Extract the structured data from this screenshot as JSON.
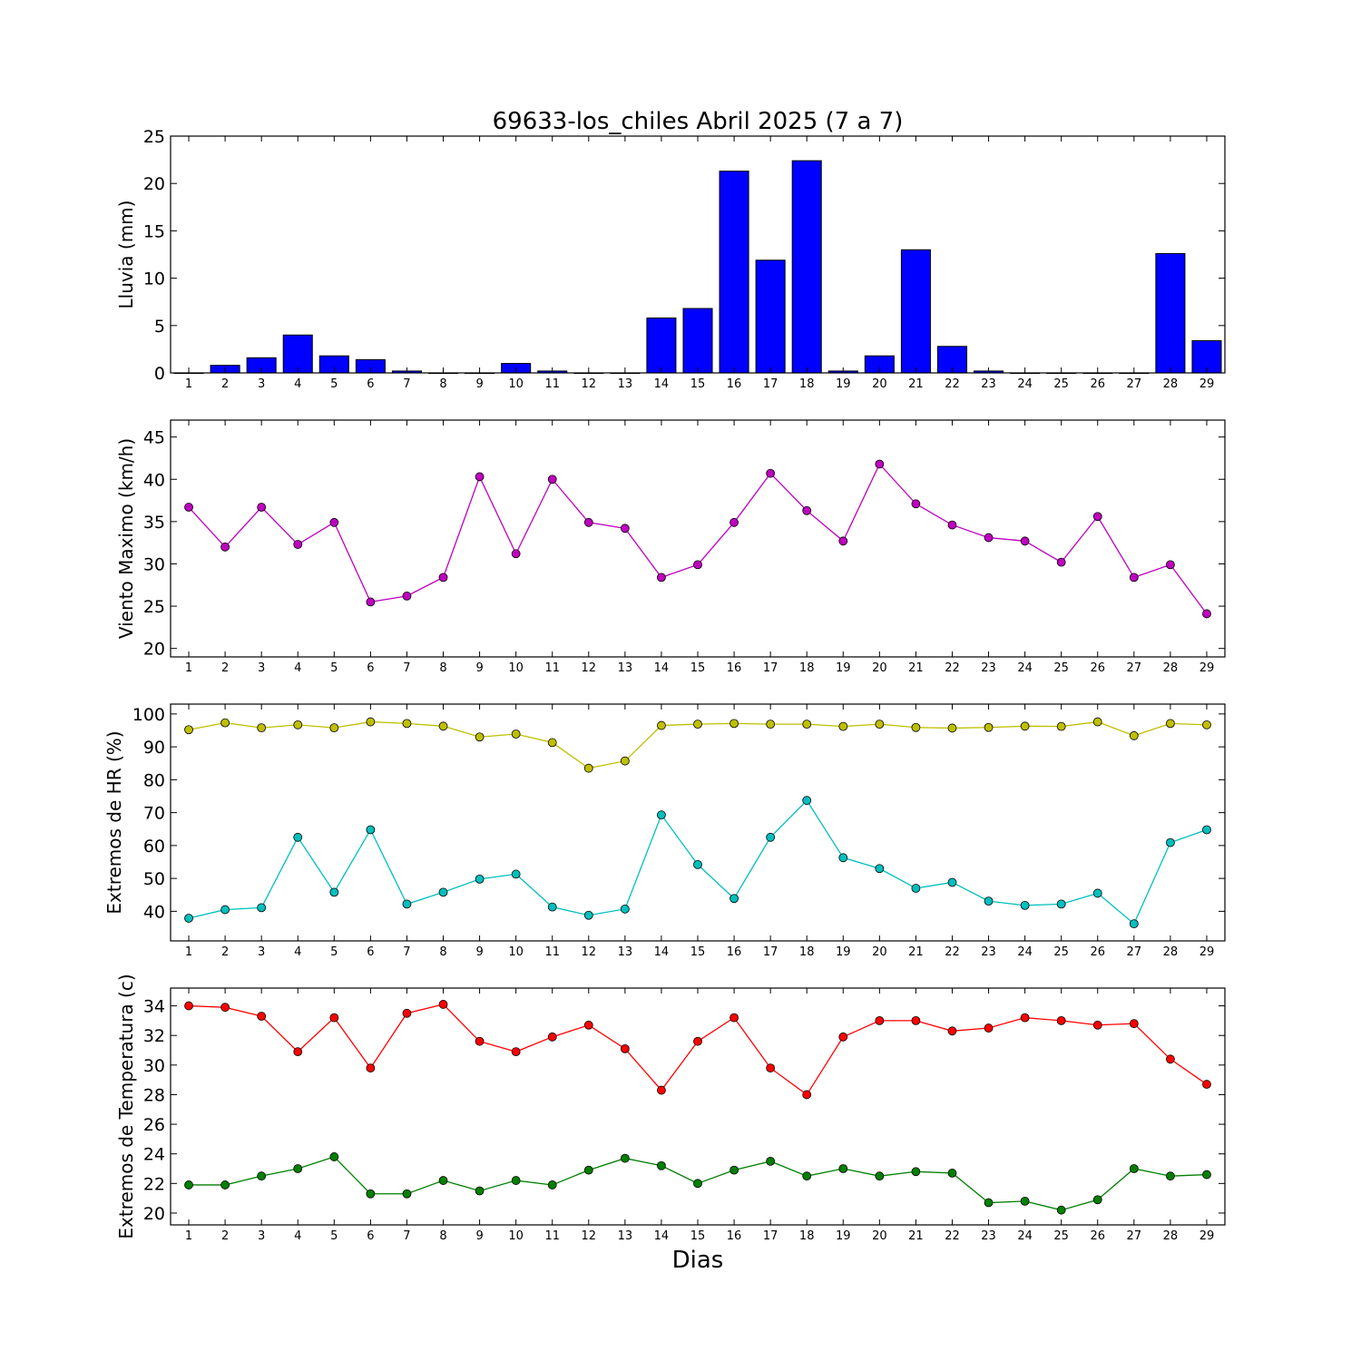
{
  "figure": {
    "title": "69633-los_chiles Abril 2025  (7 a 7)",
    "xlabel": "Dias"
  },
  "chart_data": [
    {
      "type": "bar",
      "ylabel": "Lluvia (mm)",
      "ylim": [
        0,
        25
      ],
      "yticks": [
        0,
        5,
        10,
        15,
        20,
        25
      ],
      "x": [
        1,
        2,
        3,
        4,
        5,
        6,
        7,
        8,
        9,
        10,
        11,
        12,
        13,
        14,
        15,
        16,
        17,
        18,
        19,
        20,
        21,
        22,
        23,
        24,
        25,
        26,
        27,
        28,
        29
      ],
      "values": [
        0,
        0.8,
        1.6,
        4.0,
        1.8,
        1.4,
        0.2,
        0,
        0,
        1.0,
        0.2,
        0,
        0,
        5.8,
        6.8,
        21.3,
        11.9,
        22.4,
        0.2,
        1.8,
        13.0,
        2.8,
        0.2,
        0,
        0,
        0,
        0,
        12.6,
        3.4
      ],
      "color": "#0000ff",
      "grid": false
    },
    {
      "type": "line",
      "ylabel": "Viento Maximo (km/h)",
      "ylim": [
        19,
        47
      ],
      "yticks": [
        20,
        25,
        30,
        35,
        40,
        45
      ],
      "x": [
        1,
        2,
        3,
        4,
        5,
        6,
        7,
        8,
        9,
        10,
        11,
        12,
        13,
        14,
        15,
        16,
        17,
        18,
        19,
        20,
        21,
        22,
        23,
        24,
        25,
        26,
        27,
        28,
        29
      ],
      "series": [
        {
          "color": "#bf00bf",
          "values": [
            36.7,
            32.0,
            36.7,
            32.3,
            34.9,
            25.5,
            26.2,
            28.4,
            40.3,
            31.2,
            40.0,
            34.9,
            34.2,
            28.4,
            29.9,
            34.9,
            40.7,
            36.3,
            32.7,
            41.8,
            37.1,
            34.6,
            33.1,
            32.7,
            30.2,
            35.6,
            28.4,
            29.9,
            24.1
          ]
        }
      ],
      "grid": false
    },
    {
      "type": "line",
      "ylabel": "Extremos de HR (%)",
      "ylim": [
        31,
        103
      ],
      "yticks": [
        40,
        50,
        60,
        70,
        80,
        90,
        100
      ],
      "x": [
        1,
        2,
        3,
        4,
        5,
        6,
        7,
        8,
        9,
        10,
        11,
        12,
        13,
        14,
        15,
        16,
        17,
        18,
        19,
        20,
        21,
        22,
        23,
        24,
        25,
        26,
        27,
        28,
        29
      ],
      "series": [
        {
          "color": "#bfbf00",
          "values": [
            95.2,
            97.3,
            95.8,
            96.7,
            95.8,
            97.6,
            97.1,
            96.3,
            93.0,
            93.9,
            91.3,
            83.5,
            85.7,
            96.5,
            96.9,
            97.1,
            96.9,
            96.9,
            96.2,
            96.9,
            95.9,
            95.7,
            95.9,
            96.3,
            96.2,
            97.6,
            93.4,
            97.1,
            96.7
          ]
        },
        {
          "color": "#00bfbf",
          "values": [
            37.9,
            40.5,
            41.1,
            62.5,
            45.8,
            64.8,
            42.2,
            45.8,
            49.8,
            51.3,
            41.3,
            38.8,
            40.7,
            69.3,
            54.2,
            43.9,
            62.5,
            73.7,
            56.3,
            53.0,
            47.0,
            48.8,
            43.1,
            41.8,
            42.2,
            45.5,
            36.2,
            60.9,
            64.8
          ]
        }
      ],
      "grid": false
    },
    {
      "type": "line",
      "ylabel": "Extremos de Temperatura (c)",
      "ylim": [
        19.2,
        35.2
      ],
      "yticks": [
        20,
        22,
        24,
        26,
        28,
        30,
        32,
        34
      ],
      "x": [
        1,
        2,
        3,
        4,
        5,
        6,
        7,
        8,
        9,
        10,
        11,
        12,
        13,
        14,
        15,
        16,
        17,
        18,
        19,
        20,
        21,
        22,
        23,
        24,
        25,
        26,
        27,
        28,
        29
      ],
      "series": [
        {
          "color": "#ff0000",
          "values": [
            34.0,
            33.9,
            33.3,
            30.9,
            33.2,
            29.8,
            33.5,
            34.1,
            31.6,
            30.9,
            31.9,
            32.7,
            31.1,
            28.3,
            31.6,
            33.2,
            29.8,
            28.0,
            31.9,
            33.0,
            33.0,
            32.3,
            32.5,
            33.2,
            33.0,
            32.7,
            32.8,
            30.4,
            28.7
          ]
        },
        {
          "color": "#008000",
          "values": [
            21.9,
            21.9,
            22.5,
            23.0,
            23.8,
            21.3,
            21.3,
            22.2,
            21.5,
            22.2,
            21.9,
            22.9,
            23.7,
            23.2,
            22.0,
            22.9,
            23.5,
            22.5,
            23.0,
            22.5,
            22.8,
            22.7,
            20.7,
            20.8,
            20.2,
            20.9,
            23.0,
            22.5,
            22.6
          ]
        }
      ],
      "grid": false
    }
  ]
}
